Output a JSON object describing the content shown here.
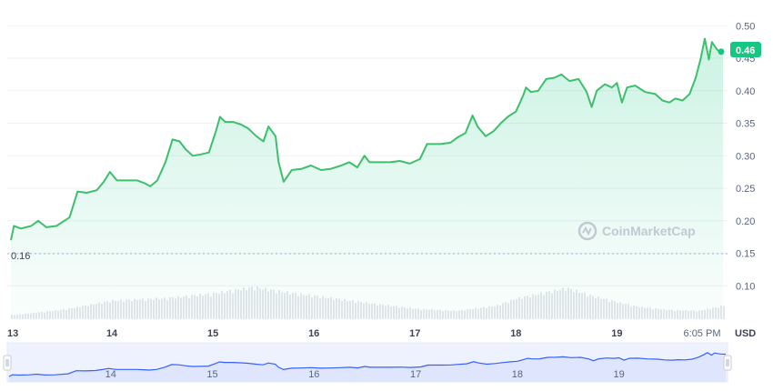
{
  "chart_data": {
    "type": "area",
    "xlabel": "",
    "ylabel": "",
    "unit_label": "USD",
    "y_ticks": [
      "0.50",
      "0.45",
      "0.40",
      "0.35",
      "0.30",
      "0.25",
      "0.20",
      "0.15",
      "0.10"
    ],
    "ylim": [
      0.05,
      0.52
    ],
    "x_ticks": [
      "13",
      "14",
      "15",
      "16",
      "17",
      "18",
      "19",
      "6:05 PM"
    ],
    "xlim": [
      13.0,
      20.05
    ],
    "current_price_label": "0.46",
    "current_price": 0.46,
    "low_label": "0.16",
    "low_value": 0.16,
    "watermark": "CoinMarketCap",
    "accent_color": "#16c784",
    "line_color": "#3cc06b",
    "navigator_color": "#3861fb",
    "series": [
      {
        "values": [
          [
            13.0,
            0.17
          ],
          [
            13.03,
            0.192
          ],
          [
            13.1,
            0.188
          ],
          [
            13.2,
            0.192
          ],
          [
            13.27,
            0.2
          ],
          [
            13.35,
            0.19
          ],
          [
            13.45,
            0.192
          ],
          [
            13.58,
            0.205
          ],
          [
            13.66,
            0.245
          ],
          [
            13.75,
            0.243
          ],
          [
            13.85,
            0.247
          ],
          [
            13.92,
            0.26
          ],
          [
            13.98,
            0.275
          ],
          [
            14.05,
            0.262
          ],
          [
            14.15,
            0.262
          ],
          [
            14.25,
            0.262
          ],
          [
            14.32,
            0.258
          ],
          [
            14.38,
            0.253
          ],
          [
            14.45,
            0.262
          ],
          [
            14.53,
            0.29
          ],
          [
            14.6,
            0.325
          ],
          [
            14.67,
            0.322
          ],
          [
            14.73,
            0.31
          ],
          [
            14.8,
            0.3
          ],
          [
            14.88,
            0.302
          ],
          [
            14.96,
            0.305
          ],
          [
            15.03,
            0.338
          ],
          [
            15.07,
            0.36
          ],
          [
            15.12,
            0.352
          ],
          [
            15.2,
            0.352
          ],
          [
            15.28,
            0.348
          ],
          [
            15.35,
            0.342
          ],
          [
            15.43,
            0.33
          ],
          [
            15.5,
            0.322
          ],
          [
            15.55,
            0.345
          ],
          [
            15.62,
            0.33
          ],
          [
            15.65,
            0.29
          ],
          [
            15.7,
            0.26
          ],
          [
            15.78,
            0.278
          ],
          [
            15.88,
            0.28
          ],
          [
            15.97,
            0.285
          ],
          [
            16.07,
            0.278
          ],
          [
            16.17,
            0.28
          ],
          [
            16.27,
            0.285
          ],
          [
            16.35,
            0.29
          ],
          [
            16.43,
            0.282
          ],
          [
            16.5,
            0.3
          ],
          [
            16.55,
            0.29
          ],
          [
            16.65,
            0.29
          ],
          [
            16.75,
            0.29
          ],
          [
            16.85,
            0.292
          ],
          [
            16.95,
            0.288
          ],
          [
            17.05,
            0.295
          ],
          [
            17.12,
            0.318
          ],
          [
            17.25,
            0.318
          ],
          [
            17.35,
            0.32
          ],
          [
            17.42,
            0.328
          ],
          [
            17.5,
            0.335
          ],
          [
            17.57,
            0.362
          ],
          [
            17.62,
            0.345
          ],
          [
            17.7,
            0.33
          ],
          [
            17.78,
            0.338
          ],
          [
            17.85,
            0.35
          ],
          [
            17.92,
            0.36
          ],
          [
            18.0,
            0.368
          ],
          [
            18.07,
            0.392
          ],
          [
            18.1,
            0.405
          ],
          [
            18.15,
            0.398
          ],
          [
            18.22,
            0.4
          ],
          [
            18.3,
            0.418
          ],
          [
            18.38,
            0.42
          ],
          [
            18.45,
            0.425
          ],
          [
            18.53,
            0.415
          ],
          [
            18.62,
            0.418
          ],
          [
            18.7,
            0.398
          ],
          [
            18.75,
            0.375
          ],
          [
            18.8,
            0.4
          ],
          [
            18.88,
            0.41
          ],
          [
            18.95,
            0.405
          ],
          [
            19.0,
            0.412
          ],
          [
            19.05,
            0.382
          ],
          [
            19.1,
            0.405
          ],
          [
            19.18,
            0.408
          ],
          [
            19.28,
            0.398
          ],
          [
            19.38,
            0.395
          ],
          [
            19.45,
            0.385
          ],
          [
            19.52,
            0.382
          ],
          [
            19.58,
            0.388
          ],
          [
            19.65,
            0.385
          ],
          [
            19.72,
            0.395
          ],
          [
            19.78,
            0.42
          ],
          [
            19.83,
            0.45
          ],
          [
            19.87,
            0.48
          ],
          [
            19.91,
            0.448
          ],
          [
            19.94,
            0.475
          ],
          [
            19.97,
            0.468
          ],
          [
            20.0,
            0.462
          ],
          [
            20.05,
            0.46
          ]
        ]
      }
    ],
    "volume": {
      "values": [
        [
          13.0,
          0.08
        ],
        [
          13.5,
          0.18
        ],
        [
          14.0,
          0.36
        ],
        [
          14.5,
          0.4
        ],
        [
          15.0,
          0.5
        ],
        [
          15.4,
          0.62
        ],
        [
          15.6,
          0.55
        ],
        [
          16.0,
          0.45
        ],
        [
          16.5,
          0.32
        ],
        [
          17.0,
          0.2
        ],
        [
          17.4,
          0.16
        ],
        [
          17.8,
          0.26
        ],
        [
          18.0,
          0.4
        ],
        [
          18.3,
          0.52
        ],
        [
          18.5,
          0.6
        ],
        [
          18.8,
          0.42
        ],
        [
          19.2,
          0.24
        ],
        [
          19.5,
          0.18
        ],
        [
          19.8,
          0.16
        ],
        [
          20.05,
          0.26
        ]
      ]
    },
    "navigator": {
      "x_ticks": [
        "14",
        "15",
        "16",
        "17",
        "18",
        "19"
      ]
    }
  }
}
